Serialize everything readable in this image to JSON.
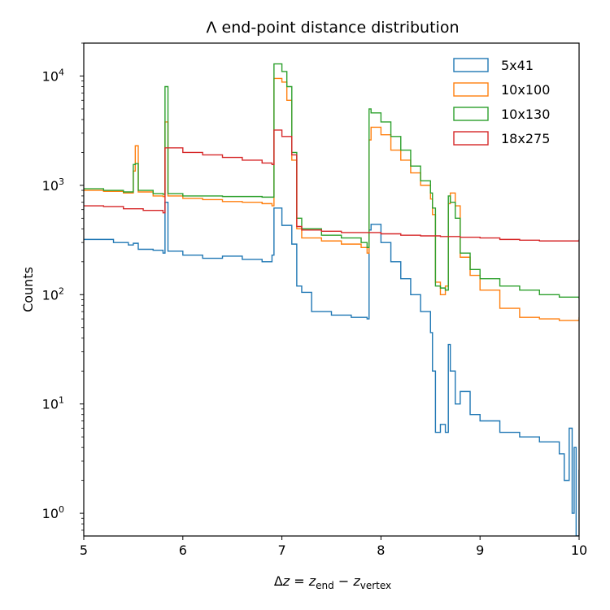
{
  "chart_data": {
    "type": "step-histogram",
    "title": "Λ end-point distance distribution",
    "xlabel": {
      "prefix": "Δ",
      "var": "z",
      "eq": " = ",
      "z1": "z",
      "sub1": "end",
      "minus": " − ",
      "z2": "z",
      "sub2": "vertex"
    },
    "ylabel": "Counts",
    "xlim": [
      5,
      10
    ],
    "ylim": [
      0.62,
      20000
    ],
    "yscale": "log",
    "xticks": [
      "5",
      "6",
      "7",
      "8",
      "9",
      "10"
    ],
    "yticks": [
      {
        "base": "10",
        "exp": "0",
        "value": 1
      },
      {
        "base": "10",
        "exp": "1",
        "value": 10
      },
      {
        "base": "10",
        "exp": "2",
        "value": 100
      },
      {
        "base": "10",
        "exp": "3",
        "value": 1000
      },
      {
        "base": "10",
        "exp": "4",
        "value": 10000
      }
    ],
    "legend_position": "top-right",
    "series": [
      {
        "name": "5x41",
        "color": "#1f77b4",
        "points": [
          [
            5.0,
            320
          ],
          [
            5.15,
            320
          ],
          [
            5.3,
            300
          ],
          [
            5.45,
            285
          ],
          [
            5.5,
            295
          ],
          [
            5.55,
            260
          ],
          [
            5.7,
            255
          ],
          [
            5.8,
            240
          ],
          [
            5.82,
            700
          ],
          [
            5.85,
            250
          ],
          [
            6.0,
            230
          ],
          [
            6.2,
            215
          ],
          [
            6.4,
            225
          ],
          [
            6.6,
            210
          ],
          [
            6.8,
            200
          ],
          [
            6.9,
            230
          ],
          [
            6.92,
            620
          ],
          [
            7.0,
            430
          ],
          [
            7.1,
            290
          ],
          [
            7.15,
            120
          ],
          [
            7.2,
            105
          ],
          [
            7.3,
            70
          ],
          [
            7.5,
            65
          ],
          [
            7.7,
            62
          ],
          [
            7.86,
            60
          ],
          [
            7.88,
            390
          ],
          [
            7.9,
            440
          ],
          [
            8.0,
            300
          ],
          [
            8.1,
            200
          ],
          [
            8.2,
            140
          ],
          [
            8.3,
            100
          ],
          [
            8.4,
            70
          ],
          [
            8.5,
            45
          ],
          [
            8.52,
            20
          ],
          [
            8.55,
            5.5
          ],
          [
            8.6,
            6.5
          ],
          [
            8.65,
            5.5
          ],
          [
            8.68,
            35
          ],
          [
            8.7,
            20
          ],
          [
            8.75,
            10
          ],
          [
            8.8,
            13
          ],
          [
            8.9,
            8
          ],
          [
            9.0,
            7
          ],
          [
            9.2,
            5.5
          ],
          [
            9.4,
            5
          ],
          [
            9.6,
            4.5
          ],
          [
            9.8,
            3.5
          ],
          [
            9.85,
            2
          ],
          [
            9.9,
            6
          ],
          [
            9.93,
            1
          ],
          [
            9.95,
            4
          ],
          [
            9.97,
            0.62
          ],
          [
            10.0,
            2.5
          ]
        ]
      },
      {
        "name": "10x100",
        "color": "#ff7f0e",
        "points": [
          [
            5.0,
            900
          ],
          [
            5.2,
            880
          ],
          [
            5.4,
            850
          ],
          [
            5.5,
            1350
          ],
          [
            5.52,
            2300
          ],
          [
            5.55,
            870
          ],
          [
            5.7,
            800
          ],
          [
            5.8,
            790
          ],
          [
            5.82,
            3800
          ],
          [
            5.85,
            800
          ],
          [
            6.0,
            760
          ],
          [
            6.2,
            740
          ],
          [
            6.4,
            710
          ],
          [
            6.6,
            700
          ],
          [
            6.8,
            680
          ],
          [
            6.9,
            650
          ],
          [
            6.92,
            9500
          ],
          [
            7.0,
            8800
          ],
          [
            7.05,
            6000
          ],
          [
            7.1,
            1700
          ],
          [
            7.15,
            400
          ],
          [
            7.2,
            330
          ],
          [
            7.4,
            310
          ],
          [
            7.6,
            290
          ],
          [
            7.8,
            270
          ],
          [
            7.86,
            240
          ],
          [
            7.88,
            2600
          ],
          [
            7.9,
            3400
          ],
          [
            8.0,
            2900
          ],
          [
            8.1,
            2100
          ],
          [
            8.2,
            1700
          ],
          [
            8.3,
            1300
          ],
          [
            8.4,
            1000
          ],
          [
            8.5,
            750
          ],
          [
            8.52,
            540
          ],
          [
            8.55,
            130
          ],
          [
            8.6,
            100
          ],
          [
            8.65,
            120
          ],
          [
            8.68,
            680
          ],
          [
            8.7,
            850
          ],
          [
            8.75,
            650
          ],
          [
            8.8,
            220
          ],
          [
            8.9,
            150
          ],
          [
            9.0,
            110
          ],
          [
            9.2,
            75
          ],
          [
            9.4,
            62
          ],
          [
            9.6,
            60
          ],
          [
            9.8,
            58
          ],
          [
            10.0,
            62
          ]
        ]
      },
      {
        "name": "10x130",
        "color": "#2ca02c",
        "points": [
          [
            5.0,
            930
          ],
          [
            5.2,
            900
          ],
          [
            5.4,
            870
          ],
          [
            5.5,
            1550
          ],
          [
            5.52,
            1580
          ],
          [
            5.55,
            900
          ],
          [
            5.7,
            840
          ],
          [
            5.8,
            830
          ],
          [
            5.82,
            8000
          ],
          [
            5.85,
            840
          ],
          [
            6.0,
            800
          ],
          [
            6.2,
            800
          ],
          [
            6.4,
            790
          ],
          [
            6.6,
            790
          ],
          [
            6.8,
            780
          ],
          [
            6.9,
            780
          ],
          [
            6.92,
            12900
          ],
          [
            7.0,
            11000
          ],
          [
            7.05,
            8000
          ],
          [
            7.1,
            2000
          ],
          [
            7.15,
            500
          ],
          [
            7.2,
            400
          ],
          [
            7.4,
            350
          ],
          [
            7.6,
            330
          ],
          [
            7.8,
            300
          ],
          [
            7.86,
            270
          ],
          [
            7.88,
            5000
          ],
          [
            7.9,
            4600
          ],
          [
            8.0,
            3800
          ],
          [
            8.1,
            2800
          ],
          [
            8.2,
            2100
          ],
          [
            8.3,
            1500
          ],
          [
            8.4,
            1100
          ],
          [
            8.5,
            850
          ],
          [
            8.52,
            620
          ],
          [
            8.55,
            120
          ],
          [
            8.6,
            115
          ],
          [
            8.65,
            110
          ],
          [
            8.68,
            800
          ],
          [
            8.7,
            700
          ],
          [
            8.75,
            500
          ],
          [
            8.8,
            240
          ],
          [
            8.9,
            170
          ],
          [
            9.0,
            140
          ],
          [
            9.2,
            120
          ],
          [
            9.4,
            110
          ],
          [
            9.6,
            100
          ],
          [
            9.8,
            95
          ],
          [
            10.0,
            92
          ]
        ]
      },
      {
        "name": "18x275",
        "color": "#d62728",
        "points": [
          [
            5.0,
            650
          ],
          [
            5.2,
            640
          ],
          [
            5.4,
            610
          ],
          [
            5.6,
            590
          ],
          [
            5.8,
            560
          ],
          [
            5.82,
            2200
          ],
          [
            6.0,
            2000
          ],
          [
            6.2,
            1900
          ],
          [
            6.4,
            1800
          ],
          [
            6.6,
            1700
          ],
          [
            6.8,
            1600
          ],
          [
            6.9,
            1550
          ],
          [
            6.92,
            3200
          ],
          [
            7.0,
            2800
          ],
          [
            7.1,
            1900
          ],
          [
            7.15,
            420
          ],
          [
            7.2,
            390
          ],
          [
            7.4,
            380
          ],
          [
            7.6,
            370
          ],
          [
            7.8,
            370
          ],
          [
            8.0,
            360
          ],
          [
            8.2,
            350
          ],
          [
            8.4,
            345
          ],
          [
            8.6,
            340
          ],
          [
            8.8,
            335
          ],
          [
            9.0,
            330
          ],
          [
            9.2,
            320
          ],
          [
            9.4,
            315
          ],
          [
            9.6,
            310
          ],
          [
            9.8,
            310
          ],
          [
            10.0,
            320
          ]
        ]
      }
    ]
  }
}
